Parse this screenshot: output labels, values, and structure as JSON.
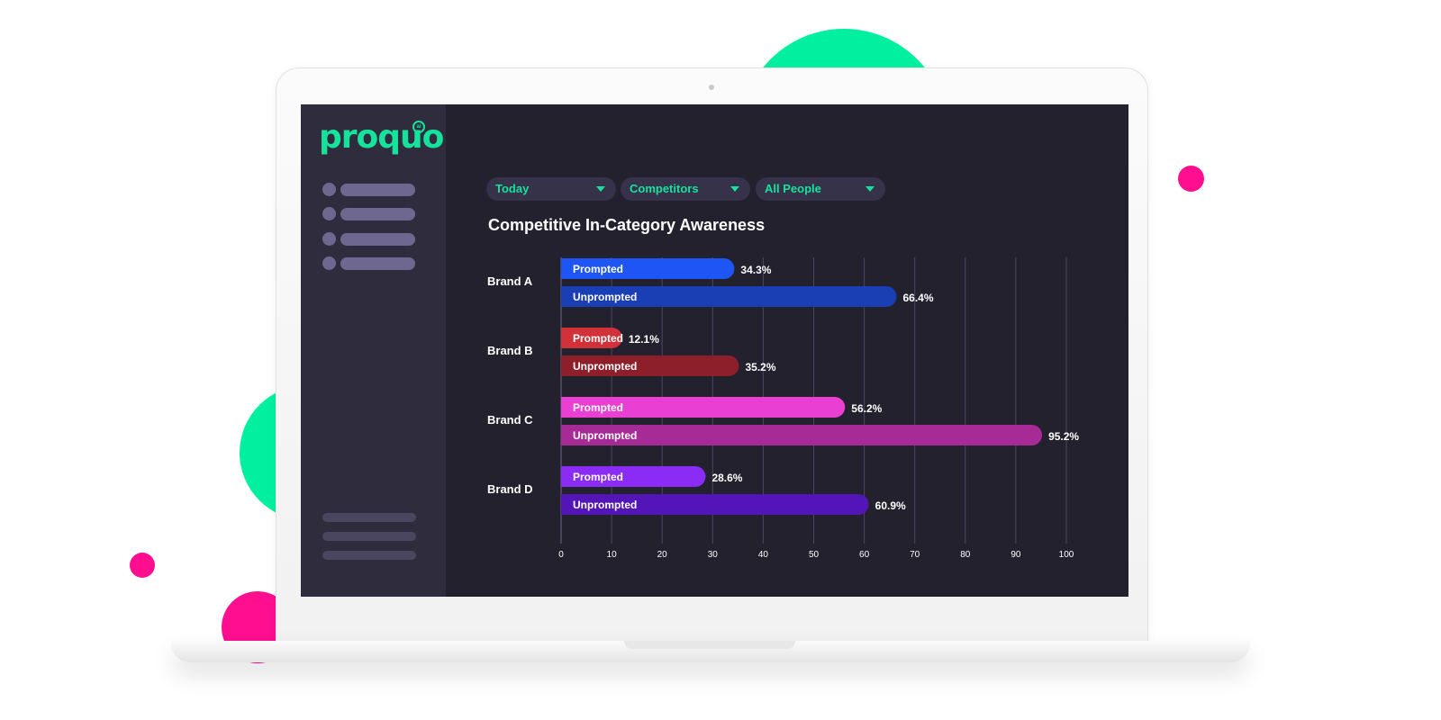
{
  "app": {
    "logo_text": "proquo",
    "logo_badge": "ai"
  },
  "filters": [
    {
      "label": "Today"
    },
    {
      "label": "Competitors"
    },
    {
      "label": "All People"
    }
  ],
  "colors": {
    "accent": "#17e29c",
    "background": "#24212f",
    "sidebar": "#2f2c3e",
    "decor_green": "#00f0a0",
    "decor_pink": "#ff0e90"
  },
  "chart_data": {
    "type": "bar",
    "orientation": "horizontal",
    "title": "Competitive In-Category Awareness",
    "categories": [
      "Brand A",
      "Brand B",
      "Brand C",
      "Brand D"
    ],
    "series": [
      {
        "name": "Prompted",
        "values": [
          34.3,
          12.1,
          56.2,
          28.6
        ],
        "colors": [
          "#1d56f5",
          "#d3313a",
          "#ea3fd3",
          "#8a2cf5"
        ]
      },
      {
        "name": "Unprompted",
        "values": [
          66.4,
          35.2,
          95.2,
          60.9
        ],
        "colors": [
          "#1a3eb3",
          "#8d1f2a",
          "#a62b96",
          "#5315b8"
        ]
      }
    ],
    "value_labels": [
      [
        "34.3%",
        "66.4%"
      ],
      [
        "12.1%",
        "35.2%"
      ],
      [
        "56.2%",
        "95.2%"
      ],
      [
        "28.6%",
        "60.9%"
      ]
    ],
    "xlim": [
      0,
      100
    ],
    "xticks": [
      0,
      10,
      20,
      30,
      40,
      50,
      60,
      70,
      80,
      90,
      100
    ],
    "grid": true,
    "legend": "none"
  }
}
